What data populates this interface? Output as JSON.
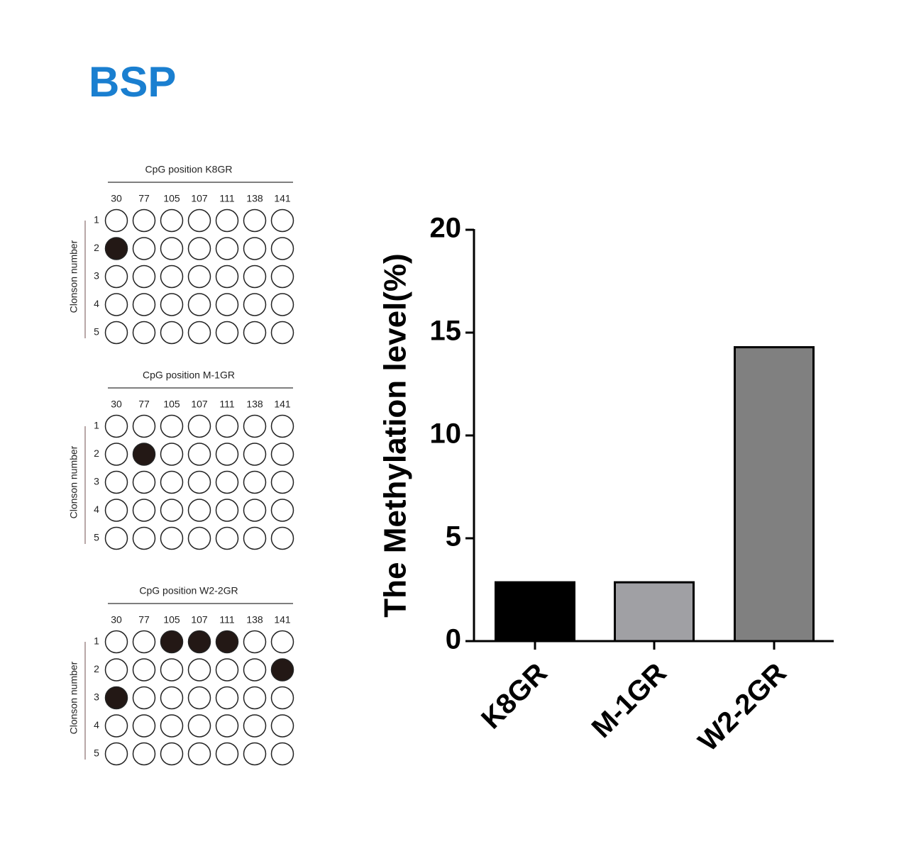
{
  "title": "BSP",
  "panels": [
    {
      "title": "CpG position  K8GR",
      "ylabel": "Clonson number",
      "positions": [
        30,
        77,
        105,
        107,
        111,
        138,
        141
      ],
      "clones": [
        1,
        2,
        3,
        4,
        5
      ],
      "methylated": [
        [
          0,
          0,
          0,
          0,
          0,
          0,
          0
        ],
        [
          1,
          0,
          0,
          0,
          0,
          0,
          0
        ],
        [
          0,
          0,
          0,
          0,
          0,
          0,
          0
        ],
        [
          0,
          0,
          0,
          0,
          0,
          0,
          0
        ],
        [
          0,
          0,
          0,
          0,
          0,
          0,
          0
        ]
      ]
    },
    {
      "title": "CpG position  M-1GR",
      "ylabel": "Clonson number",
      "positions": [
        30,
        77,
        105,
        107,
        111,
        138,
        141
      ],
      "clones": [
        1,
        2,
        3,
        4,
        5
      ],
      "methylated": [
        [
          0,
          0,
          0,
          0,
          0,
          0,
          0
        ],
        [
          0,
          1,
          0,
          0,
          0,
          0,
          0
        ],
        [
          0,
          0,
          0,
          0,
          0,
          0,
          0
        ],
        [
          0,
          0,
          0,
          0,
          0,
          0,
          0
        ],
        [
          0,
          0,
          0,
          0,
          0,
          0,
          0
        ]
      ]
    },
    {
      "title": "CpG position  W2-2GR",
      "ylabel": "Clonson number",
      "positions": [
        30,
        77,
        105,
        107,
        111,
        138,
        141
      ],
      "clones": [
        1,
        2,
        3,
        4,
        5
      ],
      "methylated": [
        [
          0,
          0,
          1,
          1,
          1,
          0,
          0
        ],
        [
          0,
          0,
          0,
          0,
          0,
          0,
          1
        ],
        [
          1,
          0,
          0,
          0,
          0,
          0,
          0
        ],
        [
          0,
          0,
          0,
          0,
          0,
          0,
          0
        ],
        [
          0,
          0,
          0,
          0,
          0,
          0,
          0
        ]
      ]
    }
  ],
  "chart_data": {
    "type": "bar",
    "ylabel": "The Methylation level(%)",
    "categories": [
      "K8GR",
      "M-1GR",
      "W2-2GR"
    ],
    "values": [
      2.86,
      2.86,
      14.29
    ],
    "colors": [
      "#000000",
      "#a0a0a4",
      "#808080"
    ],
    "ylim": [
      0,
      20
    ],
    "yticks": [
      0,
      5,
      10,
      15,
      20
    ]
  }
}
